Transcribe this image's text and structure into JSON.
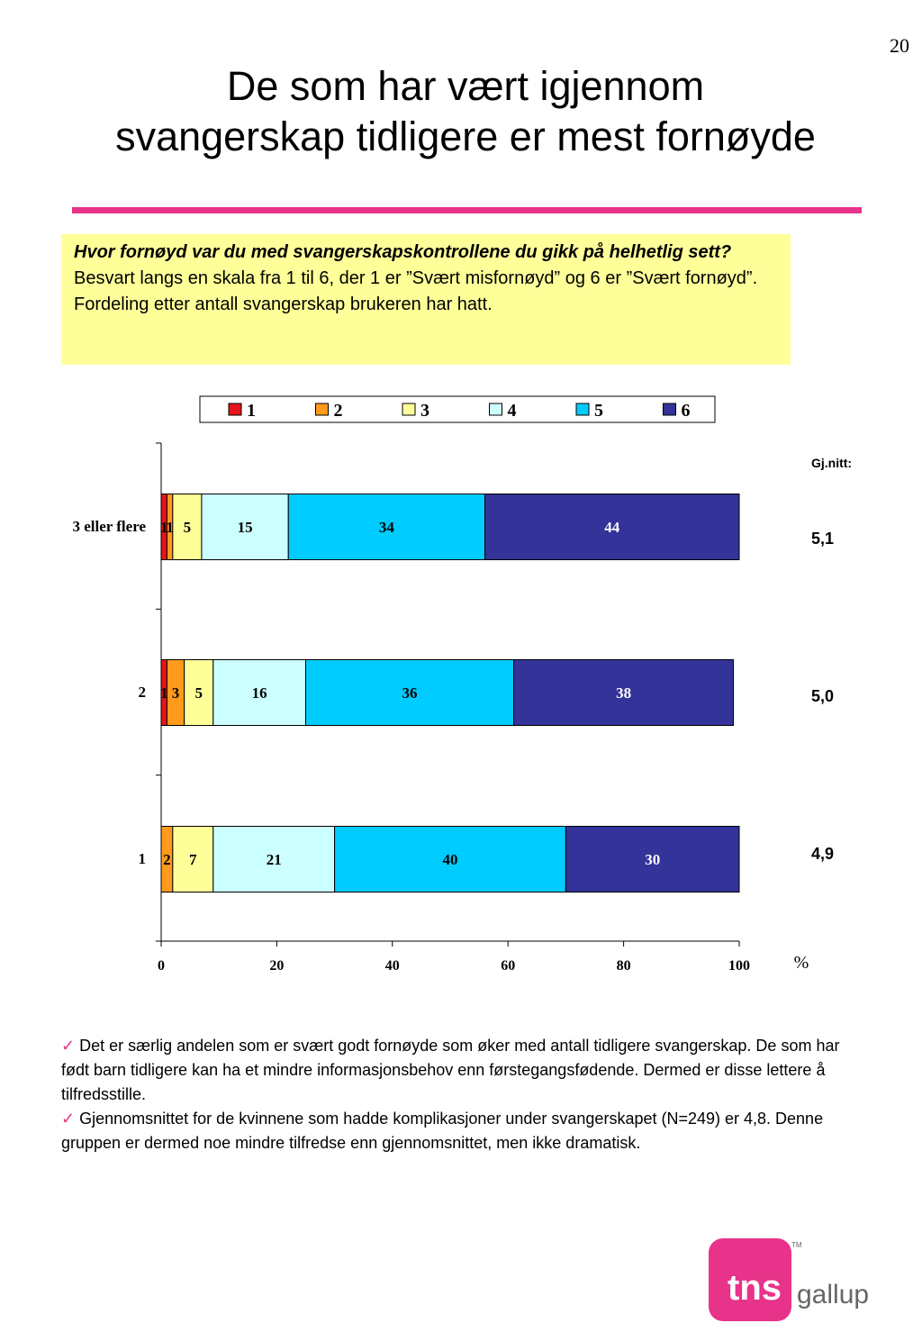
{
  "page_number": "20",
  "title_line1": "De som har vært igjennom",
  "title_line2": "svangerskap tidligere er mest fornøyde",
  "question": {
    "bold_part": "Hvor fornøyd var du med svangerskapskontrollene du gikk på helhetlig sett?",
    "normal_part": " Besvart langs en skala fra 1 til 6, der 1 er ”Svært misfornøyd” og 6 er ”Svært fornøyd”.",
    "line2": "Fordeling etter antall svangerskap brukeren har hatt."
  },
  "averages": {
    "header": "Gj.nitt:",
    "values": [
      "5,1",
      "5,0",
      "4,9"
    ]
  },
  "chart_data": {
    "type": "bar",
    "orientation": "horizontal",
    "stacked": true,
    "categories": [
      "3 eller flere",
      "2",
      "1"
    ],
    "series": [
      {
        "name": "1",
        "color": "#e8141b",
        "values": [
          1,
          1,
          0
        ]
      },
      {
        "name": "2",
        "color": "#ff9a1a",
        "values": [
          1,
          3,
          2
        ]
      },
      {
        "name": "3",
        "color": "#ffff99",
        "values": [
          5,
          5,
          7
        ]
      },
      {
        "name": "4",
        "color": "#ccffff",
        "values": [
          15,
          16,
          21
        ]
      },
      {
        "name": "5",
        "color": "#00ccff",
        "values": [
          34,
          36,
          40
        ]
      },
      {
        "name": "6",
        "color": "#333399",
        "values": [
          44,
          38,
          30
        ]
      }
    ],
    "xlim": [
      0,
      100
    ],
    "xticks": [
      0,
      20,
      40,
      60,
      80,
      100
    ],
    "xlabel": "%",
    "legend_position": "top"
  },
  "notes": [
    "Det er særlig andelen som er svært godt fornøyde som øker med antall tidligere svangerskap. De som har født barn tidligere kan ha et mindre informasjonsbehov enn førstegangsfødende. Dermed er disse lettere å tilfredsstille.",
    "Gjennomsnittet for de kvinnene som hadde komplikasjoner under svangerskapet (N=249) er 4,8. Denne gruppen er dermed noe mindre tilfredse enn gjennomsnittet, men ikke dramatisk."
  ],
  "logo": {
    "mark": "tns",
    "word": "gallup",
    "tm": "TM",
    "color": "#e8338a"
  }
}
